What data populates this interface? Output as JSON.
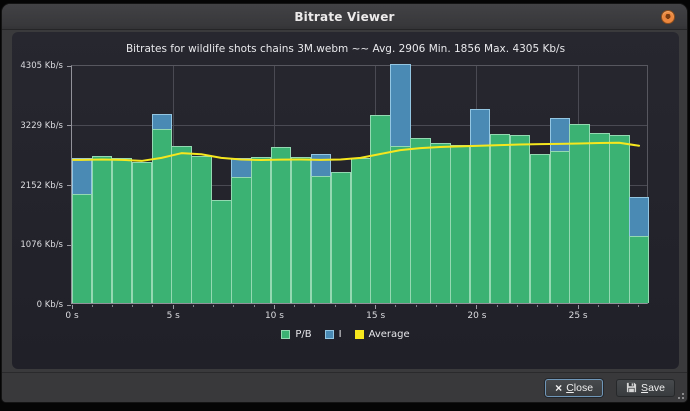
{
  "window": {
    "title": "Bitrate Viewer"
  },
  "chart": {
    "title": "Bitrates for wildlife shots chains 3M.webm ~~ Avg. 2906 Min. 1856 Max. 4305 Kb/s",
    "y_axis": {
      "unit": "Kb/s",
      "tick_labels": [
        "4305 Kb/s",
        "3229 Kb/s",
        "2152 Kb/s",
        "1076 Kb/s",
        "0 Kb/s"
      ],
      "tick_values": [
        4305,
        3229,
        2152,
        1076,
        0
      ]
    },
    "x_axis": {
      "unit": "s",
      "tick_labels": [
        "0 s",
        "5 s",
        "10 s",
        "15 s",
        "20 s",
        "25 s"
      ],
      "tick_values": [
        0,
        5,
        10,
        15,
        20,
        25
      ],
      "minor_tick_every": 1,
      "max_second": 28
    }
  },
  "chart_data": {
    "type": "bar",
    "title": "Bitrates for wildlife shots chains 3M.webm ~~ Avg. 2906 Min. 1856 Max. 4305 Kb/s",
    "x": [
      0,
      1,
      2,
      3,
      4,
      5,
      6,
      7,
      8,
      9,
      10,
      11,
      12,
      13,
      14,
      15,
      16,
      17,
      18,
      19,
      20,
      21,
      22,
      23,
      24,
      25,
      26,
      27,
      28
    ],
    "series": [
      {
        "name": "P/B",
        "type": "bar",
        "color": "#3bb273",
        "values": [
          1960,
          2650,
          2620,
          2540,
          3140,
          2830,
          2645,
          1860,
          2270,
          2635,
          2805,
          2635,
          2290,
          2360,
          2620,
          3390,
          2820,
          2975,
          2885,
          2840,
          2855,
          3045,
          3030,
          2685,
          2730,
          3225,
          3060,
          3030,
          1200
        ]
      },
      {
        "name": "I",
        "type": "bar",
        "color": "#4a8ab4",
        "values": [
          2615,
          null,
          null,
          null,
          3400,
          null,
          null,
          null,
          2615,
          null,
          null,
          null,
          2680,
          null,
          null,
          null,
          4305,
          null,
          null,
          null,
          3500,
          null,
          null,
          null,
          3335,
          null,
          null,
          null,
          1905
        ]
      },
      {
        "name": "Average",
        "type": "line",
        "color": "#f6e71e",
        "values": [
          2615,
          2620,
          2615,
          2595,
          2650,
          2735,
          2715,
          2650,
          2620,
          2612,
          2618,
          2620,
          2615,
          2620,
          2650,
          2720,
          2790,
          2825,
          2845,
          2858,
          2868,
          2880,
          2890,
          2897,
          2902,
          2910,
          2918,
          2922,
          2868
        ]
      }
    ],
    "ylim": [
      0,
      4305
    ],
    "xlabel": "seconds",
    "ylabel": "Kb/s",
    "y_gridlines": [
      1076,
      2152,
      3229
    ],
    "x_gridlines_seconds": [
      5,
      10,
      15,
      20,
      25
    ],
    "grid": true,
    "legend_position": "bottom-center",
    "stats": {
      "avg": 2906,
      "min": 1856,
      "max": 4305
    }
  },
  "legend": {
    "items": [
      {
        "label": "P/B",
        "color": "#3bb273"
      },
      {
        "label": "I",
        "color": "#4a8ab4"
      },
      {
        "label": "Average",
        "color": "#f6e71e"
      }
    ]
  },
  "footer": {
    "close_label": "Close",
    "save_label": "Save"
  },
  "icons": {
    "titlebar_close": "orange-circle-close",
    "close_glyph": "×",
    "save_glyph": "floppy-disk",
    "resize": "diagonal-grip-dots"
  }
}
